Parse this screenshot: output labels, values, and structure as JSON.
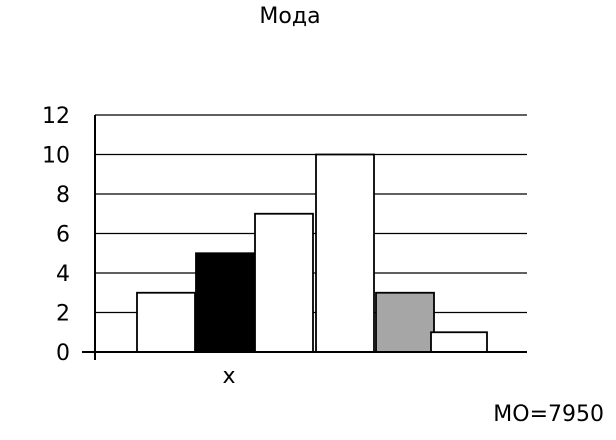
{
  "title": "Мода",
  "formula_label": "МО=7950",
  "chart_data": {
    "type": "bar",
    "title": "Мода",
    "xlabel": "x",
    "ylabel": "",
    "ylim": [
      0,
      12
    ],
    "yticks": [
      0,
      2,
      4,
      6,
      8,
      10,
      12
    ],
    "categories": [
      "",
      "",
      "",
      "",
      "",
      ""
    ],
    "values": [
      3,
      5,
      7,
      10,
      3,
      1
    ],
    "bar_colors": [
      "#ffffff",
      "#000000",
      "#ffffff",
      "#ffffff",
      "#a6a6a6",
      "#ffffff"
    ],
    "grid": true,
    "annotation": "МО=7950"
  }
}
